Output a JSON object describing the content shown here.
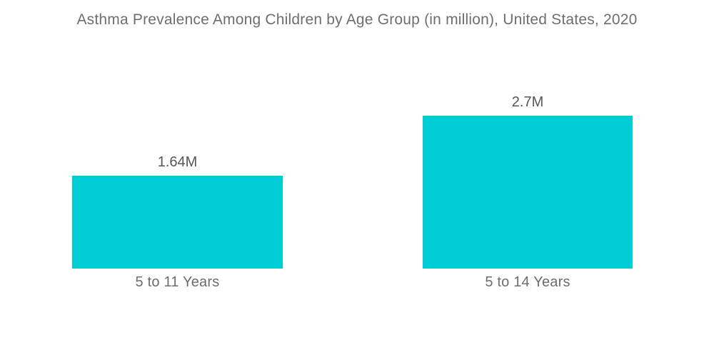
{
  "page": {
    "background_color": "#ffffff"
  },
  "chart_data": {
    "type": "bar",
    "title": "Asthma Prevalence Among Children by Age Group (in million), United States, 2020",
    "categories": [
      "5 to 11 Years",
      "5 to 14 Years"
    ],
    "values": [
      1.64,
      2.7
    ],
    "value_labels": [
      "1.64M",
      "2.7M"
    ],
    "unit": "million",
    "orientation": "vertical",
    "ylim": [
      0,
      2.7
    ],
    "grid": false,
    "legend": false,
    "axes_visible": false,
    "bar_color": "#00ccd4",
    "title_color": "#6d6e71",
    "value_label_color": "#55565a",
    "category_label_color": "#6b6c6e"
  }
}
